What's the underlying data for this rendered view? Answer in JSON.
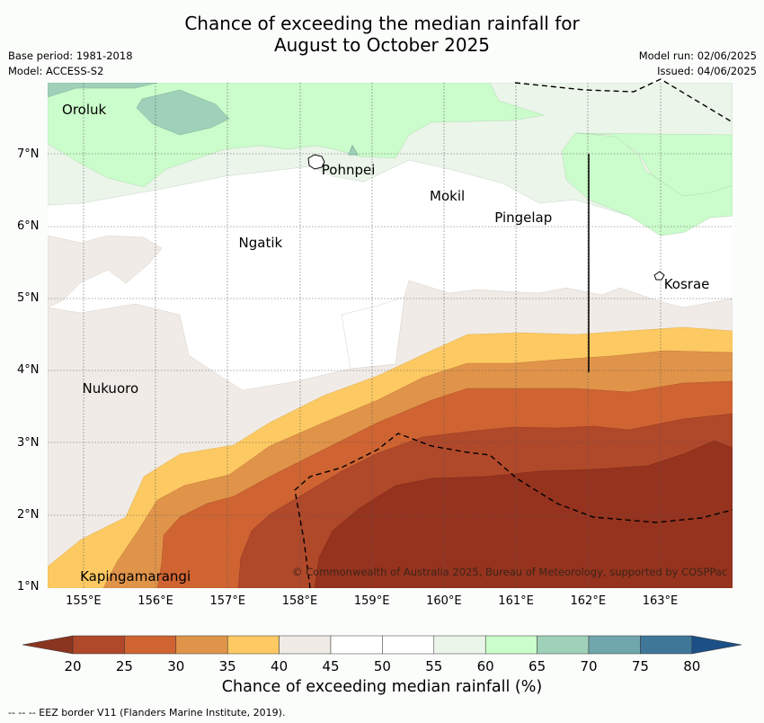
{
  "title": {
    "line1": "Chance of exceeding the median rainfall for",
    "line2": "August to October 2025"
  },
  "meta": {
    "base_period": "Base period: 1981-2018",
    "model": "Model: ACCESS-S2",
    "model_run": "Model run: 02/06/2025",
    "issued": "Issued: 04/06/2025"
  },
  "map": {
    "lat_labels": [
      "7°N",
      "6°N",
      "5°N",
      "4°N",
      "3°N",
      "2°N",
      "1°N"
    ],
    "lon_labels": [
      "155°E",
      "156°E",
      "157°E",
      "158°E",
      "159°E",
      "160°E",
      "161°E",
      "162°E",
      "163°E"
    ],
    "places": [
      {
        "name": "Oroluk",
        "lon": 154.7,
        "lat": 7.62
      },
      {
        "name": "Pohnpei",
        "lon": 158.3,
        "lat": 6.78
      },
      {
        "name": "Mokil",
        "lon": 159.8,
        "lat": 6.42
      },
      {
        "name": "Pingelap",
        "lon": 160.7,
        "lat": 6.12
      },
      {
        "name": "Ngatik",
        "lon": 157.15,
        "lat": 5.78
      },
      {
        "name": "Kosrae",
        "lon": 163.05,
        "lat": 5.2
      },
      {
        "name": "Nukuoro",
        "lon": 154.98,
        "lat": 3.75
      },
      {
        "name": "Kapingamarangi",
        "lon": 154.95,
        "lat": 1.15
      }
    ],
    "copyright": "© Commonwealth of Australia 2025, Bureau of Meteorology, supported by COSPPac"
  },
  "colorbar": {
    "labels": [
      "20",
      "25",
      "30",
      "35",
      "40",
      "45",
      "50",
      "55",
      "60",
      "65",
      "70",
      "75",
      "80"
    ],
    "colors": [
      "#8a3520",
      "#b0482a",
      "#cf6432",
      "#e0944a",
      "#fdc962",
      "#f0ebe6",
      "#ffffff",
      "#ffffff",
      "#ebf5ea",
      "#cbfccb",
      "#9fd0b9",
      "#70a7ad",
      "#3f7799",
      "#1c4f86"
    ],
    "title": "Chance of exceeding median rainfall (%)"
  },
  "footnote": "--  --  -- EEZ border V11 (Flanders Marine Institute, 2019)."
}
